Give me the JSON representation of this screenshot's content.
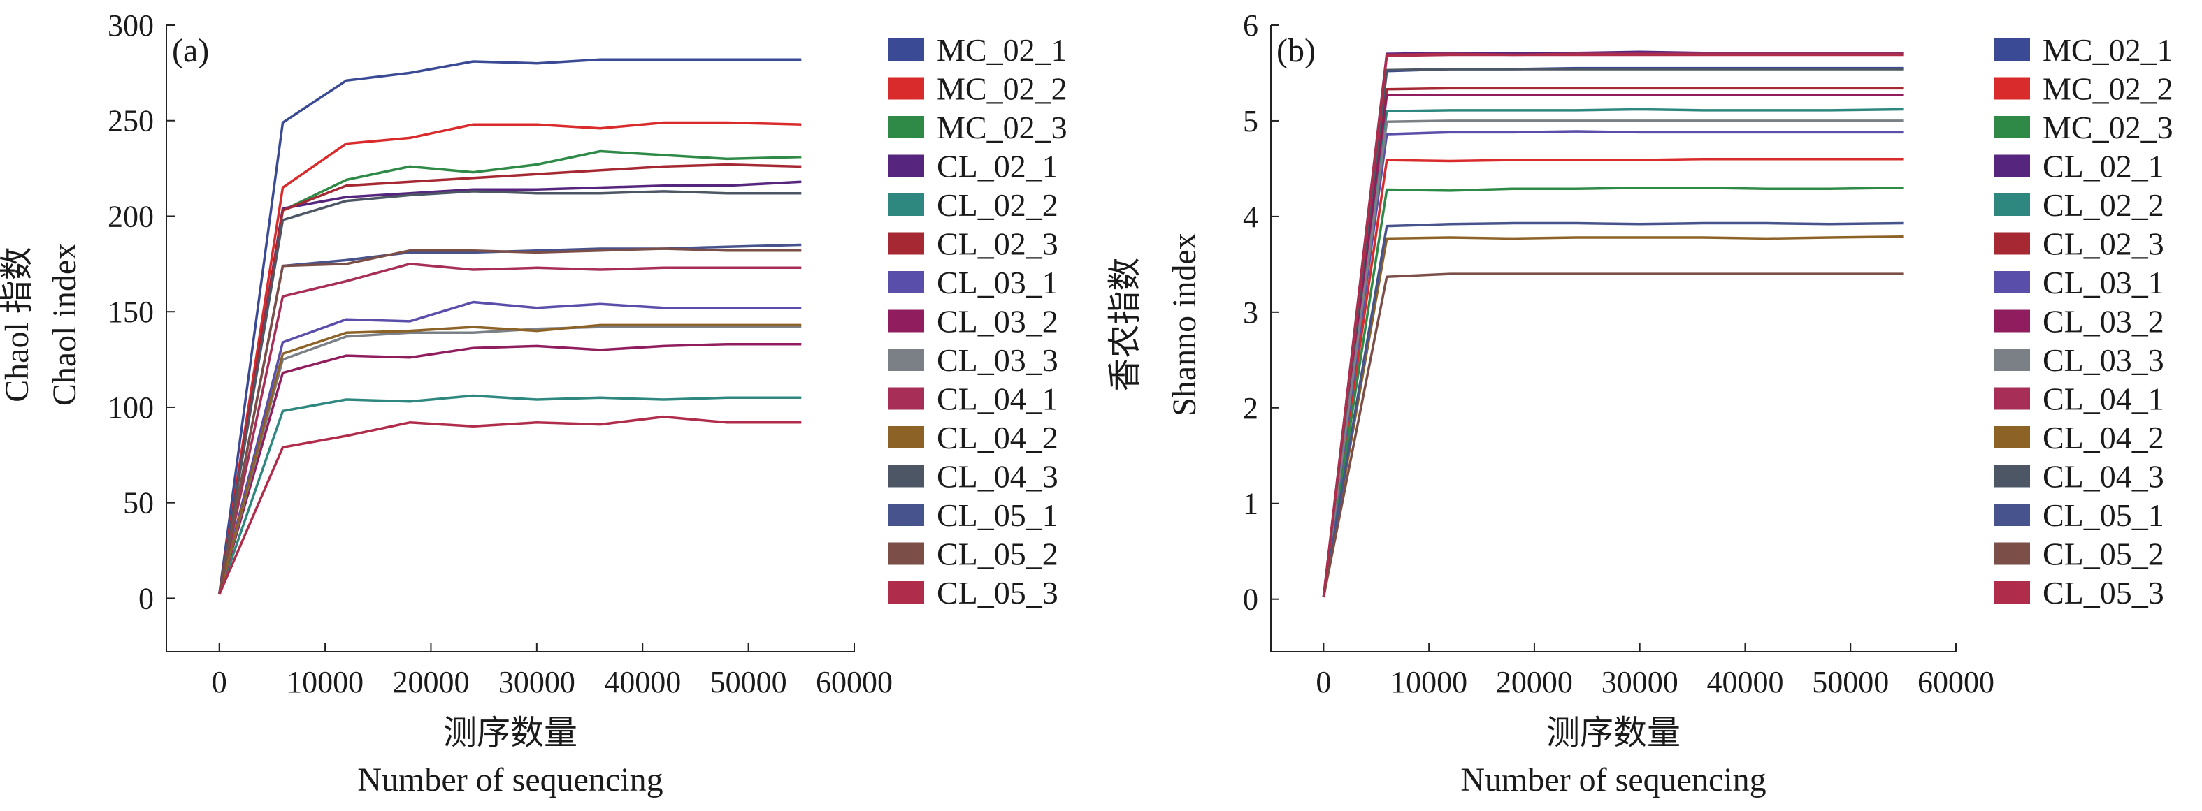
{
  "chart_data": [
    {
      "type": "line",
      "panel_label": "(a)",
      "xlabel_cn": "测序数量",
      "xlabel_en": "Number of sequencing",
      "ylabel_cn": "Chaol 指数",
      "ylabel_en": "Chaol index",
      "xlim": [
        -5000,
        60000
      ],
      "ylim": [
        -28,
        300
      ],
      "xticks": [
        0,
        10000,
        20000,
        30000,
        40000,
        50000,
        60000
      ],
      "yticks": [
        0,
        50,
        100,
        150,
        200,
        250,
        300
      ],
      "x": [
        0,
        6000,
        12000,
        18000,
        24000,
        30000,
        36000,
        42000,
        48000,
        55000
      ],
      "legend_position": "right",
      "series": [
        {
          "name": "MC_02_1",
          "color": "#3a4a94",
          "values": [
            2,
            249,
            271,
            275,
            281,
            280,
            282,
            282,
            282,
            282
          ]
        },
        {
          "name": "MC_02_2",
          "color": "#d92b2b",
          "values": [
            2,
            215,
            238,
            241,
            248,
            248,
            246,
            249,
            249,
            248
          ]
        },
        {
          "name": "MC_02_3",
          "color": "#2f8a47",
          "values": [
            2,
            203,
            219,
            226,
            223,
            227,
            234,
            232,
            230,
            231
          ]
        },
        {
          "name": "CL_02_1",
          "color": "#56267f",
          "values": [
            2,
            204,
            210,
            212,
            214,
            214,
            215,
            216,
            216,
            218
          ]
        },
        {
          "name": "CL_02_2",
          "color": "#2f8880",
          "values": [
            2,
            98,
            104,
            103,
            106,
            104,
            105,
            104,
            105,
            105
          ]
        },
        {
          "name": "CL_02_3",
          "color": "#a52832",
          "values": [
            2,
            203,
            216,
            218,
            220,
            222,
            224,
            226,
            227,
            226
          ]
        },
        {
          "name": "CL_03_1",
          "color": "#5a4eab",
          "values": [
            2,
            134,
            146,
            145,
            155,
            152,
            154,
            152,
            152,
            152
          ]
        },
        {
          "name": "CL_03_2",
          "color": "#901d5e",
          "values": [
            2,
            118,
            127,
            126,
            131,
            132,
            130,
            132,
            133,
            133
          ]
        },
        {
          "name": "CL_03_3",
          "color": "#7b8087",
          "values": [
            2,
            125,
            137,
            139,
            139,
            141,
            142,
            142,
            142,
            142
          ]
        },
        {
          "name": "CL_04_1",
          "color": "#a72f57",
          "values": [
            2,
            158,
            166,
            175,
            172,
            173,
            172,
            173,
            173,
            173
          ]
        },
        {
          "name": "CL_04_2",
          "color": "#8c6226",
          "values": [
            2,
            128,
            139,
            140,
            142,
            140,
            143,
            143,
            143,
            143
          ]
        },
        {
          "name": "CL_04_3",
          "color": "#4d5664",
          "values": [
            2,
            198,
            208,
            211,
            213,
            212,
            212,
            213,
            212,
            212
          ]
        },
        {
          "name": "CL_05_1",
          "color": "#46538c",
          "values": [
            2,
            174,
            177,
            181,
            181,
            182,
            183,
            183,
            184,
            185
          ]
        },
        {
          "name": "CL_05_2",
          "color": "#7b4f48",
          "values": [
            2,
            174,
            175,
            182,
            182,
            181,
            182,
            183,
            182,
            182
          ]
        },
        {
          "name": "CL_05_3",
          "color": "#b02c4b",
          "values": [
            2,
            79,
            85,
            92,
            90,
            92,
            91,
            95,
            92,
            92
          ]
        }
      ]
    },
    {
      "type": "line",
      "panel_label": "(b)",
      "xlabel_cn": "测序数量",
      "xlabel_en": "Number of sequencing",
      "ylabel_cn": "香农指数",
      "ylabel_en": "Shanno index",
      "xlim": [
        -5000,
        60000
      ],
      "ylim": [
        -0.55,
        6
      ],
      "xticks": [
        0,
        10000,
        20000,
        30000,
        40000,
        50000,
        60000
      ],
      "yticks": [
        0,
        1,
        2,
        3,
        4,
        5,
        6
      ],
      "x": [
        0,
        6000,
        12000,
        18000,
        24000,
        30000,
        36000,
        42000,
        48000,
        55000
      ],
      "legend_position": "right",
      "series": [
        {
          "name": "MC_02_1",
          "color": "#3a4a94",
          "values": [
            0.02,
            5.52,
            5.54,
            5.54,
            5.55,
            5.55,
            5.55,
            5.55,
            5.55,
            5.55
          ]
        },
        {
          "name": "MC_02_2",
          "color": "#d92b2b",
          "values": [
            0.02,
            4.59,
            4.58,
            4.59,
            4.59,
            4.59,
            4.6,
            4.6,
            4.6,
            4.6
          ]
        },
        {
          "name": "MC_02_3",
          "color": "#2f8a47",
          "values": [
            0.02,
            4.28,
            4.27,
            4.29,
            4.29,
            4.3,
            4.3,
            4.29,
            4.29,
            4.3
          ]
        },
        {
          "name": "CL_02_1",
          "color": "#56267f",
          "values": [
            0.02,
            5.7,
            5.71,
            5.71,
            5.71,
            5.72,
            5.71,
            5.71,
            5.71,
            5.71
          ]
        },
        {
          "name": "CL_02_2",
          "color": "#2f8880",
          "values": [
            0.02,
            5.1,
            5.11,
            5.11,
            5.11,
            5.12,
            5.11,
            5.11,
            5.11,
            5.12
          ]
        },
        {
          "name": "CL_02_3",
          "color": "#a52832",
          "values": [
            0.02,
            5.33,
            5.34,
            5.34,
            5.34,
            5.34,
            5.34,
            5.34,
            5.34,
            5.34
          ]
        },
        {
          "name": "CL_03_1",
          "color": "#5a4eab",
          "values": [
            0.02,
            4.86,
            4.88,
            4.88,
            4.89,
            4.88,
            4.88,
            4.88,
            4.88,
            4.88
          ]
        },
        {
          "name": "CL_03_2",
          "color": "#901d5e",
          "values": [
            0.02,
            5.27,
            5.27,
            5.27,
            5.27,
            5.27,
            5.27,
            5.27,
            5.27,
            5.27
          ]
        },
        {
          "name": "CL_03_3",
          "color": "#7b8087",
          "values": [
            0.02,
            4.99,
            5.0,
            5.0,
            5.0,
            5.0,
            5.0,
            5.0,
            5.0,
            5.0
          ]
        },
        {
          "name": "CL_04_1",
          "color": "#a72f57",
          "values": [
            0.02,
            5.69,
            5.7,
            5.69,
            5.7,
            5.7,
            5.7,
            5.7,
            5.7,
            5.7
          ]
        },
        {
          "name": "CL_04_2",
          "color": "#8c6226",
          "values": [
            0.02,
            3.77,
            3.78,
            3.77,
            3.78,
            3.78,
            3.78,
            3.77,
            3.78,
            3.79
          ]
        },
        {
          "name": "CL_04_3",
          "color": "#4d5664",
          "values": [
            0.02,
            5.53,
            5.54,
            5.54,
            5.54,
            5.54,
            5.54,
            5.54,
            5.54,
            5.54
          ]
        },
        {
          "name": "CL_05_1",
          "color": "#46538c",
          "values": [
            0.02,
            3.9,
            3.92,
            3.93,
            3.93,
            3.92,
            3.93,
            3.93,
            3.92,
            3.93
          ]
        },
        {
          "name": "CL_05_2",
          "color": "#7b4f48",
          "values": [
            0.02,
            3.37,
            3.4,
            3.4,
            3.4,
            3.4,
            3.4,
            3.4,
            3.4,
            3.4
          ]
        },
        {
          "name": "CL_05_3",
          "color": "#b02c4b",
          "values": [
            0.02,
            5.68,
            5.69,
            5.69,
            5.69,
            5.69,
            5.69,
            5.69,
            5.69,
            5.69
          ]
        }
      ]
    }
  ]
}
